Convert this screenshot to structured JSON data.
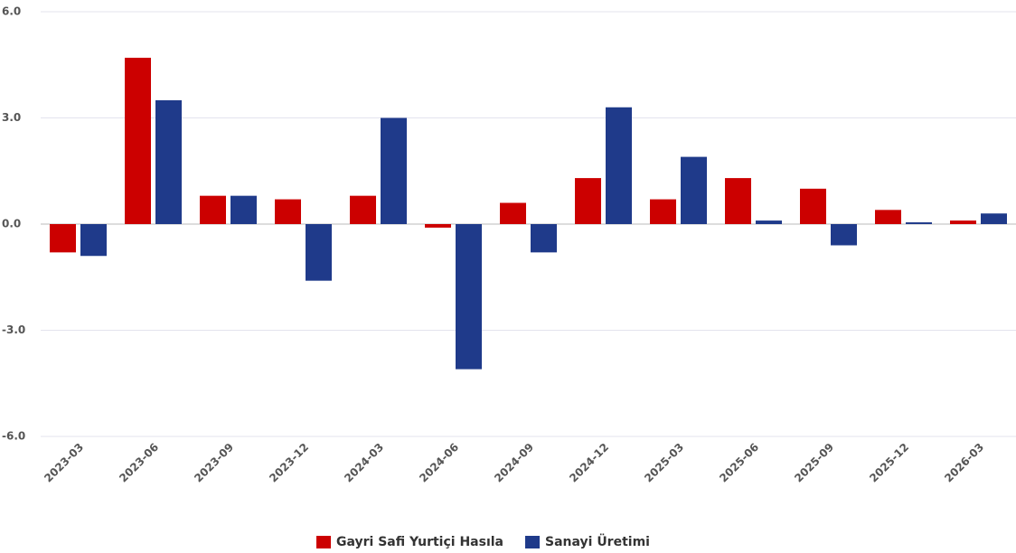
{
  "chart_data": {
    "type": "bar",
    "categories": [
      "2023-03",
      "2023-06",
      "2023-09",
      "2023-12",
      "2024-03",
      "2024-06",
      "2024-09",
      "2024-12",
      "2025-03",
      "2025-06",
      "2025-09",
      "2025-12",
      "2026-03"
    ],
    "series": [
      {
        "name": "Gayri Safi Yurtiçi Hasıla",
        "color": "#cc0000",
        "values": [
          -0.8,
          4.7,
          0.8,
          0.7,
          0.8,
          -0.1,
          0.6,
          1.3,
          0.7,
          1.3,
          1.0,
          0.4,
          0.1
        ]
      },
      {
        "name": "Sanayi Üretimi",
        "color": "#1f3a8a",
        "values": [
          -0.9,
          3.5,
          0.8,
          -1.6,
          3.0,
          -4.1,
          -0.8,
          3.3,
          1.9,
          0.1,
          -0.6,
          0.05,
          0.3
        ]
      }
    ],
    "ylim": [
      -6,
      6
    ],
    "yticks": [
      {
        "value": -6,
        "label": "-6.0"
      },
      {
        "value": -3,
        "label": "-3.0"
      },
      {
        "value": 0,
        "label": "0.0"
      },
      {
        "value": 3,
        "label": "3.0"
      },
      {
        "value": 6,
        "label": "6.0"
      }
    ],
    "grid": true,
    "legend": "bottom"
  }
}
